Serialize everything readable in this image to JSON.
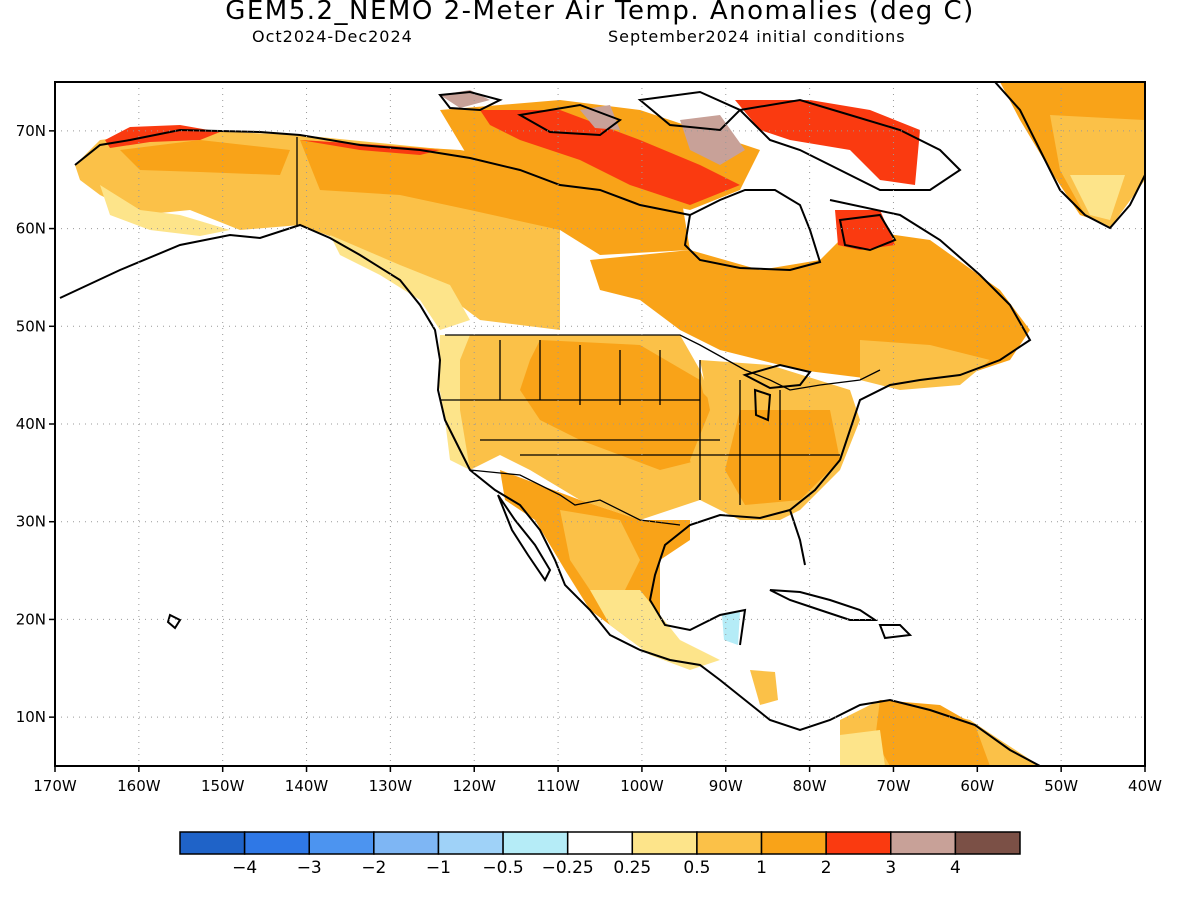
{
  "header": {
    "title": "GEM5.2_NEMO 2-Meter Air Temp. Anomalies (deg C)",
    "period": "Oct2024-Dec2024",
    "init": "September2024 initial conditions"
  },
  "axes": {
    "lon_ticks": [
      "170W",
      "160W",
      "150W",
      "140W",
      "130W",
      "120W",
      "110W",
      "100W",
      "90W",
      "80W",
      "70W",
      "60W",
      "50W",
      "40W"
    ],
    "lat_ticks": [
      "70N",
      "60N",
      "50N",
      "40N",
      "30N",
      "20N",
      "10N"
    ],
    "lon_range": [
      -170,
      -40
    ],
    "lat_range": [
      5,
      75
    ],
    "grid": true
  },
  "colorbar": {
    "colors": [
      "#1f63c8",
      "#2f78e6",
      "#4c94f0",
      "#7eb6f4",
      "#9fd2f8",
      "#b5ecf7",
      "#ffffff",
      "#fde48a",
      "#fbc148",
      "#f9a318",
      "#fa3a10",
      "#c8a198",
      "#7b5046"
    ],
    "labels": [
      "−4",
      "−3",
      "−2",
      "−1",
      "−0.5",
      "−0.25",
      "0.25",
      "0.5",
      "1",
      "2",
      "3",
      "4"
    ]
  },
  "colors": {
    "anom_0_25_0_5": "#fde48a",
    "anom_0_5_1": "#fbc148",
    "anom_1_2": "#f9a318",
    "anom_2_3": "#fa3a10",
    "anom_3_4": "#c8a198",
    "anom_neg_0_5_0_25": "#b5ecf7"
  }
}
